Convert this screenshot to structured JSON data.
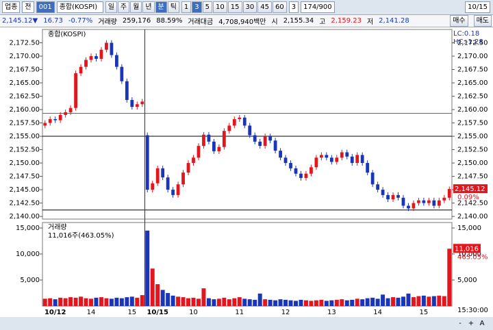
{
  "toolbar": {
    "group": "업종",
    "market": "전",
    "code": "001",
    "name": "종합(KOSPI)",
    "periods": [
      "일",
      "주",
      "월",
      "년",
      "분",
      "틱"
    ],
    "minutes": [
      "1",
      "3",
      "5",
      "10",
      "15",
      "30",
      "45",
      "60"
    ],
    "interval": "3",
    "count": "174/900",
    "date": "10/15"
  },
  "quote": {
    "price": "2,145.12▼",
    "change": "16.73",
    "rate": "-0.77%",
    "volume_label": "거래량",
    "volume": "259,176",
    "volume_rate": "88.59%",
    "amount_label": "거래대금",
    "amount": "4,708,940백만",
    "open_label": "시",
    "open": "2,155.34",
    "high_label": "고",
    "high": "2,159.23",
    "low_label": "저",
    "low": "2,141.28",
    "buy": "매수",
    "sell": "매도"
  },
  "statusbar": {
    "time": "15:30:00",
    "buttons": [
      "-",
      "+",
      "A"
    ]
  },
  "chart_data": [
    {
      "type": "candlestick",
      "title": "종합(KOSPI)",
      "up_color": "#e3151d",
      "down_color": "#1a35b8",
      "lc": "LC:0.18",
      "hc": "HC:-1.28",
      "close_label": "2,145.12",
      "change_label": "0.09%",
      "open": [
        2157.0,
        2157.5,
        2158.2,
        2158.0,
        2159.0,
        2159.5,
        2160.3,
        2166.8,
        2168.0,
        2169.3,
        2170.0,
        2169.5,
        2171.2,
        2172.5,
        2170.2,
        2168.0,
        2165.3,
        2161.8,
        2160.5,
        2161.0,
        2155.2,
        2145.0,
        2146.2,
        2149.0,
        2147.3,
        2145.0,
        2144.0,
        2146.0,
        2148.2,
        2150.0,
        2151.0,
        2153.2,
        2155.3,
        2154.0,
        2152.2,
        2153.0,
        2156.0,
        2157.0,
        2158.2,
        2158.5,
        2157.0,
        2155.2,
        2154.0,
        2153.2,
        2155.0,
        2154.2,
        2152.3,
        2151.0,
        2150.0,
        2149.0,
        2148.0,
        2147.2,
        2148.0,
        2149.2,
        2151.0,
        2151.5,
        2151.0,
        2150.2,
        2151.0,
        2152.0,
        2151.2,
        2150.0,
        2151.5,
        2150.0,
        2148.2,
        2146.0,
        2145.0,
        2144.0,
        2143.2,
        2144.0,
        2143.5,
        2142.0,
        2141.5,
        2142.5,
        2143.0,
        2142.5,
        2143.0,
        2142.0,
        2143.0,
        2143.5
      ],
      "high": [
        2158.0,
        2158.7,
        2158.7,
        2159.5,
        2160.0,
        2160.8,
        2167.3,
        2168.5,
        2169.8,
        2170.5,
        2170.5,
        2171.7,
        2173.0,
        2173.0,
        2170.7,
        2168.5,
        2165.8,
        2162.3,
        2161.5,
        2162.0,
        2155.7,
        2146.7,
        2149.5,
        2149.5,
        2147.8,
        2145.5,
        2146.5,
        2148.7,
        2150.5,
        2151.5,
        2153.7,
        2155.8,
        2155.8,
        2154.5,
        2153.5,
        2156.5,
        2157.5,
        2158.7,
        2159.0,
        2159.0,
        2157.5,
        2155.7,
        2154.5,
        2155.5,
        2155.5,
        2154.7,
        2152.8,
        2151.5,
        2150.5,
        2149.5,
        2148.5,
        2148.5,
        2149.7,
        2151.5,
        2152.0,
        2152.0,
        2151.5,
        2151.5,
        2152.5,
        2152.5,
        2151.7,
        2152.0,
        2152.0,
        2150.5,
        2148.7,
        2146.5,
        2145.5,
        2144.5,
        2144.5,
        2144.5,
        2144.0,
        2142.5,
        2143.0,
        2143.5,
        2143.5,
        2143.5,
        2143.5,
        2143.5,
        2144.0,
        2145.6
      ],
      "low": [
        2156.5,
        2157.0,
        2157.5,
        2157.5,
        2158.5,
        2159.0,
        2159.8,
        2166.3,
        2167.5,
        2168.8,
        2169.0,
        2169.0,
        2170.7,
        2169.7,
        2167.5,
        2164.8,
        2161.3,
        2160.0,
        2160.0,
        2160.5,
        2144.5,
        2144.5,
        2145.7,
        2146.8,
        2144.5,
        2143.5,
        2143.5,
        2145.5,
        2147.7,
        2149.5,
        2150.5,
        2152.7,
        2153.5,
        2151.7,
        2151.7,
        2152.5,
        2155.5,
        2156.5,
        2157.7,
        2156.5,
        2154.7,
        2153.5,
        2152.7,
        2152.7,
        2153.7,
        2151.8,
        2150.5,
        2149.5,
        2148.5,
        2147.5,
        2146.7,
        2146.7,
        2147.5,
        2148.7,
        2150.5,
        2150.5,
        2149.7,
        2149.7,
        2150.5,
        2150.7,
        2149.5,
        2149.5,
        2149.5,
        2147.7,
        2145.5,
        2144.5,
        2143.5,
        2142.7,
        2142.7,
        2143.0,
        2141.5,
        2141.0,
        2141.0,
        2142.0,
        2142.0,
        2142.0,
        2141.5,
        2141.5,
        2142.5,
        2143.0
      ],
      "close": [
        2157.5,
        2158.2,
        2158.0,
        2159.0,
        2159.5,
        2160.3,
        2166.8,
        2168.0,
        2169.3,
        2170.0,
        2169.5,
        2171.2,
        2172.5,
        2170.2,
        2168.0,
        2165.3,
        2161.8,
        2160.5,
        2161.0,
        2161.5,
        2145.0,
        2146.2,
        2149.0,
        2147.3,
        2145.0,
        2144.0,
        2146.0,
        2148.2,
        2150.0,
        2151.0,
        2153.2,
        2155.3,
        2154.0,
        2152.2,
        2153.0,
        2156.0,
        2157.0,
        2158.2,
        2158.5,
        2157.0,
        2155.2,
        2154.0,
        2153.2,
        2155.0,
        2154.2,
        2152.3,
        2151.0,
        2150.0,
        2149.0,
        2148.0,
        2147.2,
        2148.0,
        2149.2,
        2151.0,
        2151.5,
        2151.0,
        2150.2,
        2151.0,
        2152.0,
        2151.2,
        2150.0,
        2151.5,
        2150.0,
        2148.2,
        2146.0,
        2145.0,
        2144.0,
        2143.2,
        2144.0,
        2143.5,
        2142.0,
        2141.5,
        2142.5,
        2143.0,
        2142.5,
        2143.0,
        2142.0,
        2143.0,
        2143.5,
        2145.12
      ],
      "ylim": [
        2139.5,
        2175
      ],
      "yticks": [
        {
          "value": 2140,
          "label": "2,140.00"
        },
        {
          "value": 2142.5,
          "label": "2,142.50"
        },
        {
          "value": 2145,
          "label": "2,145.00"
        },
        {
          "value": 2147.5,
          "label": "2,147.50"
        },
        {
          "value": 2150,
          "label": "2,150.00"
        },
        {
          "value": 2152.5,
          "label": "2,152.50"
        },
        {
          "value": 2155,
          "label": "2,155.00"
        },
        {
          "value": 2157.5,
          "label": "2,157.50"
        },
        {
          "value": 2160,
          "label": "2,160.00"
        },
        {
          "value": 2162.5,
          "label": "2,162.50"
        },
        {
          "value": 2165,
          "label": "2,165.00"
        },
        {
          "value": 2167.5,
          "label": "2,167.50"
        },
        {
          "value": 2170,
          "label": "2,170.00"
        },
        {
          "value": 2172.5,
          "label": "2,172.50"
        }
      ],
      "hlines": [
        {
          "value": 2159.3,
          "color": "#d01ad0"
        },
        {
          "value": 2155.0,
          "color": "#000000"
        },
        {
          "value": 2141.2,
          "color": "#000000"
        }
      ]
    },
    {
      "type": "bar",
      "title": "거래량",
      "subtitle": "11,016주(463.05%)",
      "value_label": "11,016",
      "change_label": "463.05%",
      "categories": [
        null,
        null,
        "10/12",
        null,
        null,
        null,
        null,
        null,
        null,
        "14",
        null,
        null,
        null,
        null,
        null,
        null,
        null,
        "15",
        null,
        null,
        null,
        null,
        "10/15",
        null,
        null,
        null,
        null,
        null,
        null,
        "10",
        null,
        null,
        null,
        null,
        null,
        null,
        null,
        null,
        "11",
        null,
        null,
        null,
        null,
        null,
        null,
        null,
        null,
        "12",
        null,
        null,
        null,
        null,
        null,
        null,
        null,
        null,
        "13",
        null,
        null,
        null,
        null,
        null,
        null,
        null,
        null,
        "14",
        null,
        null,
        null,
        null,
        null,
        null,
        null,
        null,
        "15",
        null,
        null,
        null,
        null,
        null
      ],
      "values": [
        1400,
        1500,
        1300,
        1600,
        1500,
        1700,
        1600,
        1800,
        1500,
        1400,
        1600,
        1700,
        1500,
        1400,
        1600,
        1500,
        1700,
        1800,
        1600,
        2100,
        14500,
        7200,
        4200,
        3100,
        2500,
        2000,
        1800,
        1700,
        1500,
        1600,
        1400,
        3400,
        1500,
        1300,
        1400,
        1600,
        1300,
        1500,
        1700,
        1400,
        1300,
        1200,
        2400,
        1300,
        1200,
        1100,
        1300,
        1200,
        1100,
        1000,
        1200,
        1100,
        1000,
        1100,
        1200,
        1000,
        1100,
        1200,
        1300,
        1100,
        1200,
        1400,
        1300,
        1500,
        1600,
        1400,
        2200,
        1500,
        1700,
        1600,
        1800,
        2400,
        1700,
        1900,
        2000,
        1800,
        1900,
        2000,
        1900,
        11016
      ],
      "ylim": [
        0,
        16050
      ],
      "yticks": [
        {
          "value": 5000,
          "label": "5,000"
        },
        {
          "value": 10000,
          "label": "10,000"
        },
        {
          "value": 15000,
          "label": "15,000"
        }
      ]
    }
  ]
}
